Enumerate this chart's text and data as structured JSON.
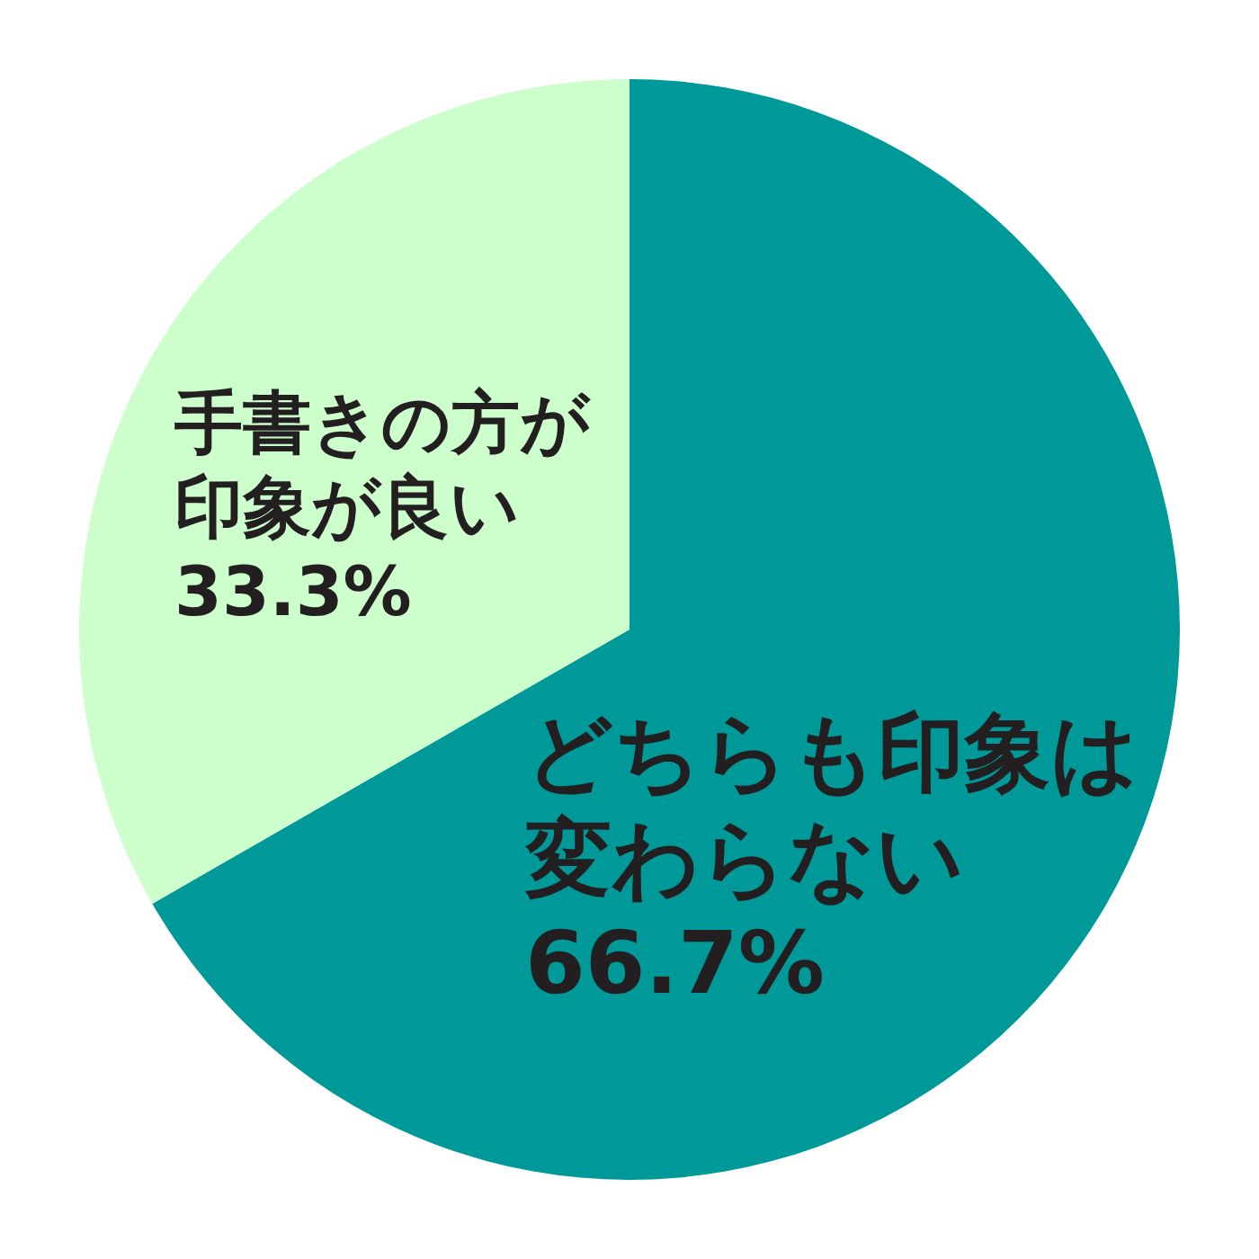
{
  "chart_data": {
    "type": "pie",
    "categories": [
      "どちらも印象は変わらない",
      "手書きの方が印象が良い"
    ],
    "values": [
      66.7,
      33.3
    ],
    "colors": [
      "#009999",
      "#ccffcc"
    ],
    "value_labels": [
      "66.7%",
      "33.3%"
    ]
  }
}
